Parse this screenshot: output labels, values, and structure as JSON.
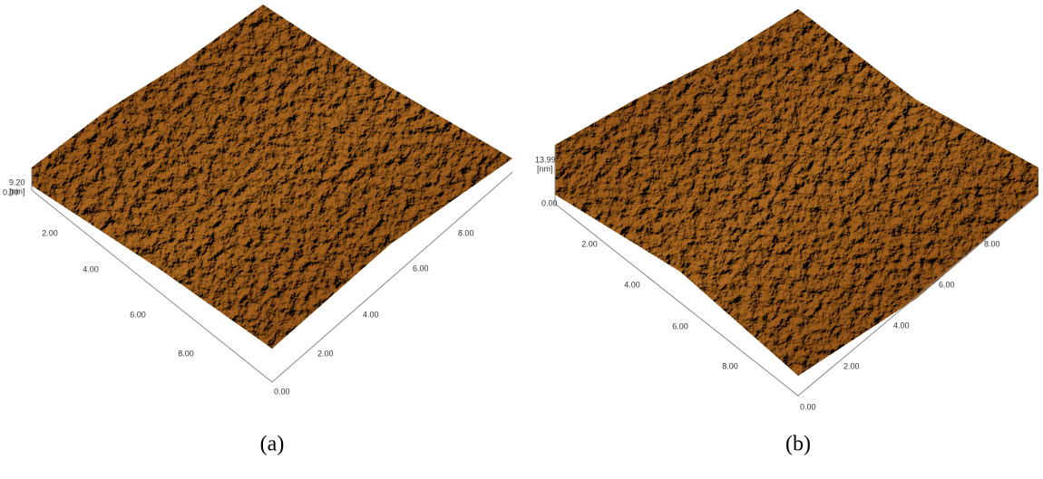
{
  "panels": [
    {
      "z_max": "9.20",
      "z_unit": "[nm]",
      "z_origin": "0.00",
      "left_axis_ticks": [
        "2.00",
        "4.00",
        "6.00",
        "8.00"
      ],
      "right_axis_ticks": [
        "0.00",
        "2.00",
        "4.00",
        "6.00",
        "8.00"
      ],
      "caption": "(a)"
    },
    {
      "z_max": "13.99",
      "z_unit": "[nm]",
      "z_origin": "0.00",
      "left_axis_ticks": [
        "2.00",
        "4.00",
        "6.00",
        "8.00"
      ],
      "right_axis_ticks": [
        "0.00",
        "2.00",
        "4.00",
        "6.00",
        "8.00"
      ],
      "caption": "(b)"
    }
  ]
}
